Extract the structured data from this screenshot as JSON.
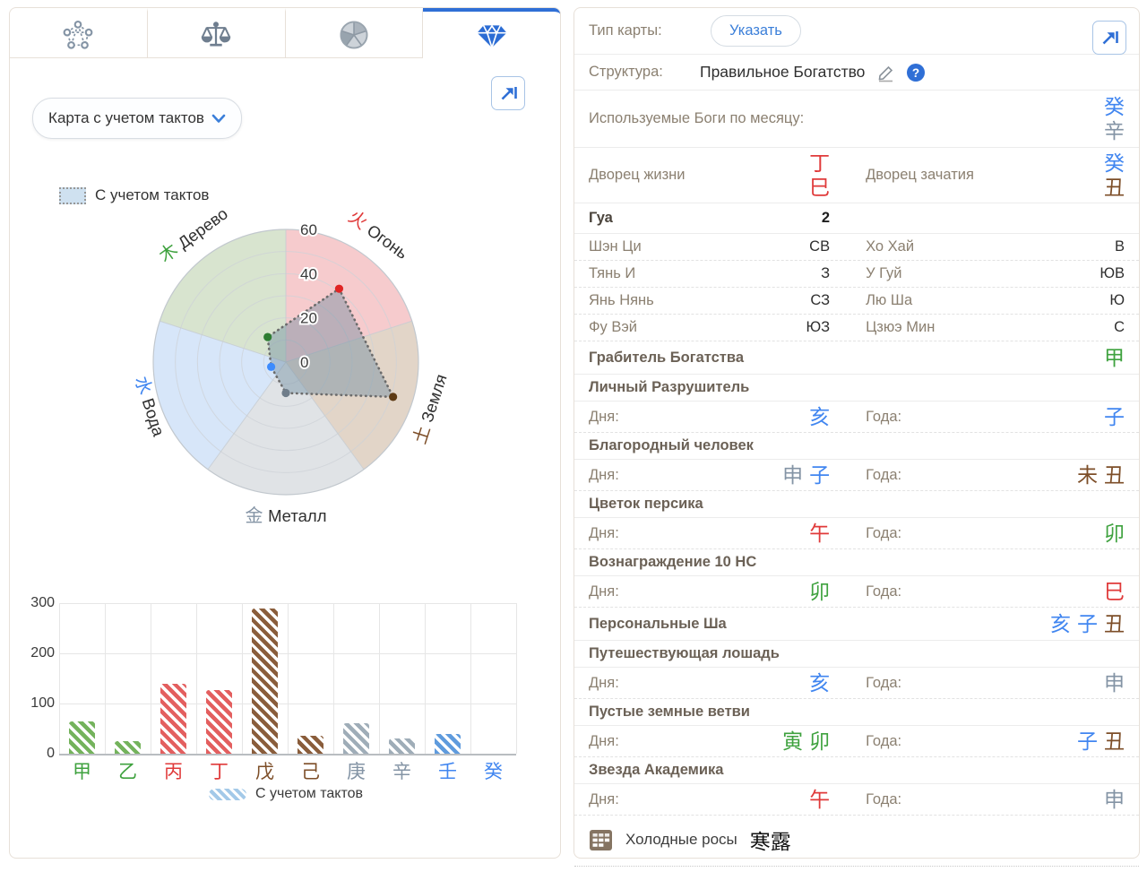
{
  "app": {
    "accent_blue": "#2f6fd6",
    "char_colors": {
      "blue": "#4186f0",
      "gray": "#8494a5",
      "red": "#e03a3a",
      "brown": "#7d4e28",
      "green": "#3fa23f"
    },
    "dot_colors": {
      "red": "#e02424",
      "brown": "#5d3a14",
      "gray": "#6f7d8a",
      "blue": "#3d8bfd",
      "green": "#2e7d32"
    },
    "bar_colors": {
      "green": "#74b35c",
      "red": "#e35f5f",
      "brown": "#8a5d3b",
      "gray": "#9fadb8",
      "blue": "#5f9bdd"
    }
  },
  "left_panel": {
    "tabs": [
      {
        "icon": "network-pentagon-icon",
        "active": false
      },
      {
        "icon": "scales-icon",
        "active": false
      },
      {
        "icon": "wheel-icon",
        "active": false
      },
      {
        "icon": "diamond-icon",
        "active": true
      }
    ],
    "dropdown_value": "Карта с учетом тактов"
  },
  "chart_data": [
    {
      "type": "polar-radar",
      "series_label": "С учетом тактов",
      "rlim": [
        0,
        60
      ],
      "ticks": [
        0,
        20,
        40,
        60
      ],
      "ring_step": 10,
      "axes": [
        {
          "label": "Огонь",
          "hanzi": "火",
          "color": "red",
          "value": 41,
          "fill": "rgba(229,98,103,0.33)"
        },
        {
          "label": "Земля",
          "hanzi": "土",
          "color": "brown",
          "value": 51,
          "fill": "rgba(166,124,85,0.32)"
        },
        {
          "label": "Металл",
          "hanzi": "金",
          "color": "gray",
          "value": 14,
          "fill": "rgba(145,156,166,0.28)"
        },
        {
          "label": "Вода",
          "hanzi": "水",
          "color": "blue",
          "value": 7,
          "fill": "rgba(121,172,235,0.30)"
        },
        {
          "label": "Дерево",
          "hanzi": "木",
          "color": "green",
          "value": 14,
          "fill": "rgba(126,166,96,0.30)"
        }
      ]
    },
    {
      "type": "bar",
      "series_label": "С учетом тактов",
      "categories": [
        "甲",
        "乙",
        "丙",
        "丁",
        "戊",
        "己",
        "庚",
        "辛",
        "壬",
        "癸"
      ],
      "cat_colors": [
        "green",
        "green",
        "red",
        "red",
        "brown",
        "brown",
        "gray",
        "gray",
        "blue",
        "blue"
      ],
      "values": [
        65,
        25,
        140,
        127,
        290,
        35,
        60,
        30,
        40,
        0
      ],
      "ylim": [
        0,
        300
      ],
      "yticks": [
        0,
        100,
        200,
        300
      ]
    }
  ],
  "right_panel": {
    "type_row": {
      "label": "Тип карты:",
      "button": "Указать"
    },
    "structure_row": {
      "label": "Структура:",
      "value": "Правильное Богатство"
    },
    "gods_row": {
      "label": "Используемые Боги по месяцу:",
      "chars": [
        {
          "t": "癸",
          "c": "blue"
        },
        {
          "t": "辛",
          "c": "gray"
        }
      ]
    },
    "palace_row": {
      "life_label": "Дворец жизни",
      "life_chars": [
        {
          "t": "丁",
          "c": "red"
        },
        {
          "t": "巳",
          "c": "red"
        }
      ],
      "conception_label": "Дворец зачатия",
      "conception_chars": [
        {
          "t": "癸",
          "c": "blue"
        },
        {
          "t": "丑",
          "c": "brown"
        }
      ]
    },
    "gua_row": {
      "label": "Гуа",
      "value": "2"
    },
    "gua_table": [
      {
        "l1": "Шэн Ци",
        "v1": "СВ",
        "l2": "Хо Хай",
        "v2": "В"
      },
      {
        "l1": "Тянь И",
        "v1": "З",
        "l2": "У Гуй",
        "v2": "ЮВ"
      },
      {
        "l1": "Янь Нянь",
        "v1": "СЗ",
        "l2": "Лю Ша",
        "v2": "Ю"
      },
      {
        "l1": "Фу Вэй",
        "v1": "ЮЗ",
        "l2": "Цзюэ Мин",
        "v2": "С"
      }
    ],
    "day_label": "Дня:",
    "year_label": "Года:",
    "sections": [
      {
        "title": "Грабитель Богатства",
        "chars": [
          {
            "t": "甲",
            "c": "green"
          }
        ]
      },
      {
        "title": "Личный Разрушитель",
        "day": [
          {
            "t": "亥",
            "c": "blue"
          }
        ],
        "year": [
          {
            "t": "子",
            "c": "blue"
          }
        ]
      },
      {
        "title": "Благородный человек",
        "day": [
          {
            "t": "申",
            "c": "gray"
          },
          {
            "t": "子",
            "c": "blue"
          }
        ],
        "year": [
          {
            "t": "未",
            "c": "brown"
          },
          {
            "t": "丑",
            "c": "brown"
          }
        ]
      },
      {
        "title": "Цветок персика",
        "day": [
          {
            "t": "午",
            "c": "red"
          }
        ],
        "year": [
          {
            "t": "卯",
            "c": "green"
          }
        ]
      },
      {
        "title": "Вознаграждение 10 НС",
        "day": [
          {
            "t": "卯",
            "c": "green"
          }
        ],
        "year": [
          {
            "t": "巳",
            "c": "red"
          }
        ]
      },
      {
        "title": "Персональные Ша",
        "chars": [
          {
            "t": "亥",
            "c": "blue"
          },
          {
            "t": "子",
            "c": "blue"
          },
          {
            "t": "丑",
            "c": "brown"
          }
        ]
      },
      {
        "title": "Путешествующая лошадь",
        "day": [
          {
            "t": "亥",
            "c": "blue"
          }
        ],
        "year": [
          {
            "t": "申",
            "c": "gray"
          }
        ]
      },
      {
        "title": "Пустые земные ветви",
        "day": [
          {
            "t": "寅",
            "c": "green"
          },
          {
            "t": "卯",
            "c": "green"
          }
        ],
        "year": [
          {
            "t": "子",
            "c": "blue"
          },
          {
            "t": "丑",
            "c": "brown"
          }
        ]
      },
      {
        "title": "Звезда Академика",
        "day": [
          {
            "t": "午",
            "c": "red"
          }
        ],
        "year": [
          {
            "t": "申",
            "c": "gray"
          }
        ]
      }
    ],
    "footer": {
      "icon": "table-icon",
      "text": "Холодные росы",
      "hanzi": "寒露"
    }
  }
}
